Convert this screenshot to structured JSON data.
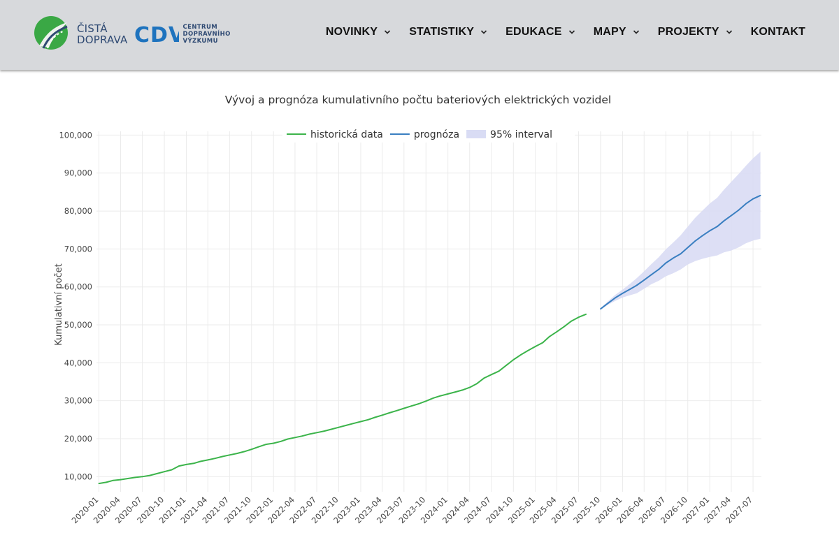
{
  "header": {
    "brand_line1": "ČISTÁ",
    "brand_line2": "DOPRAVA",
    "cdv_mark": "CDV",
    "cdv_line1": "CENTRUM",
    "cdv_line2": "DOPRAVNÍHO",
    "cdv_line3": "VÝZKUMU",
    "nav": [
      {
        "label": "NOVINKY",
        "has_dropdown": true
      },
      {
        "label": "STATISTIKY",
        "has_dropdown": true
      },
      {
        "label": "EDUKACE",
        "has_dropdown": true
      },
      {
        "label": "MAPY",
        "has_dropdown": true
      },
      {
        "label": "PROJEKTY",
        "has_dropdown": true
      },
      {
        "label": "KONTAKT",
        "has_dropdown": false
      }
    ],
    "colors": {
      "bar": "#d7d9dc",
      "brand_green": "#3aa845",
      "brand_blue": "#2f4a73",
      "cdv_blue": "#1e73be"
    }
  },
  "chart_data": {
    "type": "line",
    "title": "Vývoj a prognóza kumulativního počtu bateriových elektrických vozidel",
    "xlabel": "",
    "ylabel": "Kumulativní počet",
    "ylim": [
      6000,
      101000
    ],
    "yticks": [
      10000,
      20000,
      30000,
      40000,
      50000,
      60000,
      70000,
      80000,
      90000,
      100000
    ],
    "ytick_labels": [
      "10,000",
      "20,000",
      "30,000",
      "40,000",
      "50,000",
      "60,000",
      "70,000",
      "80,000",
      "90,000",
      "100,000"
    ],
    "xlim": [
      "2019-12-22",
      "2027-08-05"
    ],
    "xticks": [
      "2020-01",
      "2020-04",
      "2020-07",
      "2020-10",
      "2021-01",
      "2021-04",
      "2021-07",
      "2021-10",
      "2022-01",
      "2022-04",
      "2022-07",
      "2022-10",
      "2023-01",
      "2023-04",
      "2023-07",
      "2023-10",
      "2024-01",
      "2024-04",
      "2024-07",
      "2024-10",
      "2025-01",
      "2025-04",
      "2025-07",
      "2025-10",
      "2026-01",
      "2026-04",
      "2026-07",
      "2026-10",
      "2027-01",
      "2027-04",
      "2027-07"
    ],
    "grid": true,
    "legend_position": "top-center",
    "colors": {
      "historical": "#3cb44b",
      "forecast": "#3a7fc1",
      "interval": "#d9dcf4"
    },
    "series": [
      {
        "name": "historická data",
        "x": [
          "2020-01",
          "2020-02",
          "2020-03",
          "2020-04",
          "2020-05",
          "2020-06",
          "2020-07",
          "2020-08",
          "2020-09",
          "2020-10",
          "2020-11",
          "2020-12",
          "2021-01",
          "2021-02",
          "2021-03",
          "2021-04",
          "2021-05",
          "2021-06",
          "2021-07",
          "2021-08",
          "2021-09",
          "2021-10",
          "2021-11",
          "2021-12",
          "2022-01",
          "2022-02",
          "2022-03",
          "2022-04",
          "2022-05",
          "2022-06",
          "2022-07",
          "2022-08",
          "2022-09",
          "2022-10",
          "2022-11",
          "2022-12",
          "2023-01",
          "2023-02",
          "2023-03",
          "2023-04",
          "2023-05",
          "2023-06",
          "2023-07",
          "2023-08",
          "2023-09",
          "2023-10",
          "2023-11",
          "2023-12",
          "2024-01",
          "2024-02",
          "2024-03",
          "2024-04",
          "2024-05",
          "2024-06",
          "2024-07",
          "2024-08",
          "2024-09",
          "2024-10",
          "2024-11",
          "2024-12",
          "2025-01",
          "2025-02",
          "2025-03",
          "2025-04",
          "2025-05",
          "2025-06",
          "2025-07",
          "2025-08",
          "2025-09"
        ],
        "values": [
          8200,
          8500,
          9000,
          9200,
          9500,
          9800,
          10000,
          10300,
          10800,
          11300,
          11800,
          12800,
          13200,
          13500,
          14000,
          14400,
          14800,
          15300,
          15700,
          16100,
          16600,
          17200,
          17900,
          18500,
          18800,
          19300,
          19900,
          20300,
          20700,
          21200,
          21600,
          22000,
          22500,
          23000,
          23500,
          24000,
          24500,
          25000,
          25600,
          26200,
          26800,
          27400,
          28000,
          28600,
          29200,
          29900,
          30700,
          31300,
          31800,
          32300,
          32800,
          33500,
          34500,
          36000,
          36900,
          37800,
          39300,
          40800,
          42100,
          43200,
          44300,
          45300,
          46900,
          48200,
          49500,
          51000,
          52000,
          52800,
          null
        ]
      },
      {
        "name": "prognóza",
        "x": [
          "2025-10",
          "2025-11",
          "2025-12",
          "2026-01",
          "2026-02",
          "2026-03",
          "2026-04",
          "2026-05",
          "2026-06",
          "2026-07",
          "2026-08",
          "2026-09",
          "2026-10",
          "2026-11",
          "2026-12",
          "2027-01",
          "2027-02",
          "2027-03",
          "2027-04",
          "2027-05",
          "2027-06",
          "2027-07",
          "2027-08"
        ],
        "values": [
          54200,
          55700,
          57100,
          58300,
          59400,
          60400,
          61800,
          63200,
          64600,
          66300,
          67600,
          68700,
          70400,
          72100,
          73500,
          74800,
          75900,
          77400,
          78800,
          80200,
          81900,
          83200,
          84100
        ],
        "lower": [
          54000,
          55300,
          56300,
          57200,
          57800,
          58300,
          59500,
          60700,
          61600,
          62800,
          63600,
          64600,
          65900,
          66800,
          67400,
          67900,
          68300,
          69100,
          69600,
          70400,
          71500,
          72200,
          72700
        ],
        "upper": [
          54400,
          56200,
          57900,
          59300,
          60800,
          62300,
          64100,
          66000,
          67800,
          69900,
          71700,
          73600,
          75900,
          78200,
          80100,
          82000,
          83500,
          85600,
          87700,
          89700,
          91900,
          93900,
          95600
        ]
      },
      {
        "name": "95% interval",
        "kind": "band"
      }
    ]
  }
}
